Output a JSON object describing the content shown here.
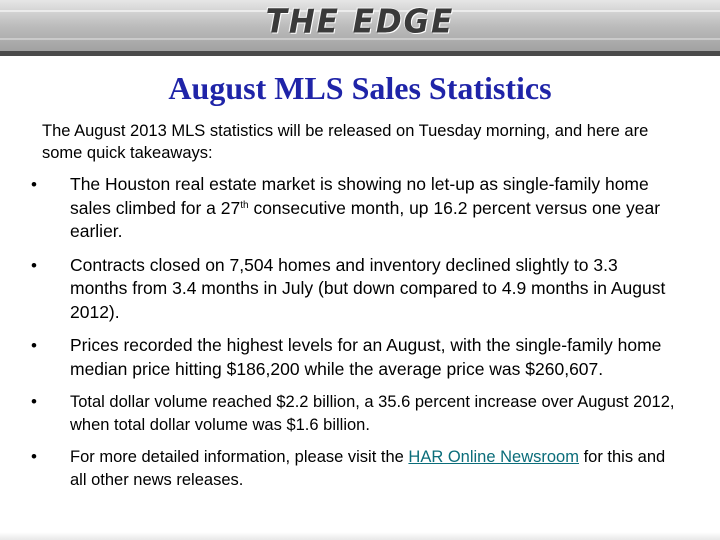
{
  "banner": {
    "brand": "THE EDGE"
  },
  "slide": {
    "title": "August MLS Sales Statistics",
    "intro": "The August 2013 MLS statistics will be released on Tuesday morning, and here are some quick takeaways:",
    "bullet_glyph": "•",
    "bullets": {
      "b1": {
        "before": "The Houston real estate market is showing no let-up as single-family home sales climbed for a 27",
        "sup": "th",
        "after": " consecutive month, up 16.2 percent versus one year earlier."
      },
      "b2": {
        "text": "Contracts closed on 7,504 homes and inventory declined slightly to 3.3 months from 3.4 months in July (but down compared to 4.9 months in August 2012)."
      },
      "b3": {
        "text": "Prices recorded the highest levels for an August, with the single-family home median price hitting $186,200 while the average price was $260,607."
      },
      "b4": {
        "text": "Total dollar volume reached $2.2 billion, a 35.6 percent increase over August  2012, when total dollar volume was $1.6 billion."
      },
      "b5": {
        "before": "For more detailed information, please visit the ",
        "link": "HAR Online Newsroom",
        "after": " for this and all other news releases."
      }
    }
  },
  "colors": {
    "title": "#1f24a8",
    "link": "#0b6d7a",
    "banner_dark": "#4a4a4a"
  }
}
